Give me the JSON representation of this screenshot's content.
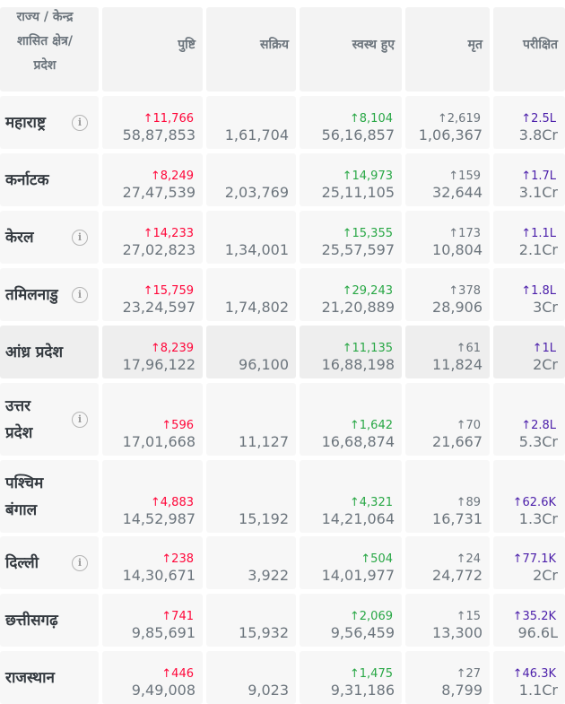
{
  "headers": {
    "state": [
      "राज्य / केन्द्र",
      "शासित क्षेत्र/",
      "प्रदेश"
    ],
    "confirmed": "पुष्टि",
    "active": "सक्रिय",
    "recovered": "स्वस्थ हुए",
    "deceased": "मृत",
    "tested": "परीक्षित"
  },
  "info_icon": "ⓘ",
  "rows": [
    {
      "state": [
        "महाराष्ट्र"
      ],
      "info": true,
      "confirmed_delta": "↑11,766",
      "confirmed": "58,87,853",
      "active": "1,61,704",
      "recovered_delta": "↑8,104",
      "recovered": "56,16,857",
      "deceased_delta": "↑2,619",
      "deceased": "1,06,367",
      "tested_delta": "↑2.5L",
      "tested": "3.8Cr"
    },
    {
      "state": [
        "कर्नाटक"
      ],
      "info": false,
      "confirmed_delta": "↑8,249",
      "confirmed": "27,47,539",
      "active": "2,03,769",
      "recovered_delta": "↑14,973",
      "recovered": "25,11,105",
      "deceased_delta": "↑159",
      "deceased": "32,644",
      "tested_delta": "↑1.7L",
      "tested": "3.1Cr"
    },
    {
      "state": [
        "केरल"
      ],
      "info": true,
      "confirmed_delta": "↑14,233",
      "confirmed": "27,02,823",
      "active": "1,34,001",
      "recovered_delta": "↑15,355",
      "recovered": "25,57,597",
      "deceased_delta": "↑173",
      "deceased": "10,804",
      "tested_delta": "↑1.1L",
      "tested": "2.1Cr"
    },
    {
      "state": [
        "तमिलनाडु"
      ],
      "info": true,
      "confirmed_delta": "↑15,759",
      "confirmed": "23,24,597",
      "active": "1,74,802",
      "recovered_delta": "↑29,243",
      "recovered": "21,20,889",
      "deceased_delta": "↑378",
      "deceased": "28,906",
      "tested_delta": "↑1.8L",
      "tested": "3Cr"
    },
    {
      "state": [
        "आंध्र प्रदेश"
      ],
      "info": false,
      "confirmed_delta": "↑8,239",
      "confirmed": "17,96,122",
      "active": "96,100",
      "recovered_delta": "↑11,135",
      "recovered": "16,88,198",
      "deceased_delta": "↑61",
      "deceased": "11,824",
      "tested_delta": "↑1L",
      "tested": "2Cr"
    },
    {
      "state": [
        "उत्तर",
        "प्रदेश"
      ],
      "info": true,
      "confirmed_delta": "↑596",
      "confirmed": "17,01,668",
      "active": "11,127",
      "recovered_delta": "↑1,642",
      "recovered": "16,68,874",
      "deceased_delta": "↑70",
      "deceased": "21,667",
      "tested_delta": "↑2.8L",
      "tested": "5.3Cr"
    },
    {
      "state": [
        "पश्चिम",
        "बंगाल"
      ],
      "info": false,
      "confirmed_delta": "↑4,883",
      "confirmed": "14,52,987",
      "active": "15,192",
      "recovered_delta": "↑4,321",
      "recovered": "14,21,064",
      "deceased_delta": "↑89",
      "deceased": "16,731",
      "tested_delta": "↑62.6K",
      "tested": "1.3Cr"
    },
    {
      "state": [
        "दिल्ली"
      ],
      "info": true,
      "confirmed_delta": "↑238",
      "confirmed": "14,30,671",
      "active": "3,922",
      "recovered_delta": "↑504",
      "recovered": "14,01,977",
      "deceased_delta": "↑24",
      "deceased": "24,772",
      "tested_delta": "↑77.1K",
      "tested": "2Cr"
    },
    {
      "state": [
        "छत्तीसगढ़"
      ],
      "info": false,
      "confirmed_delta": "↑741",
      "confirmed": "9,85,691",
      "active": "15,932",
      "recovered_delta": "↑2,069",
      "recovered": "9,56,459",
      "deceased_delta": "↑15",
      "deceased": "13,300",
      "tested_delta": "↑35.2K",
      "tested": "96.6L"
    },
    {
      "state": [
        "राजस्थान"
      ],
      "info": false,
      "confirmed_delta": "↑446",
      "confirmed": "9,49,008",
      "active": "9,023",
      "recovered_delta": "↑1,475",
      "recovered": "9,31,186",
      "deceased_delta": "↑27",
      "deceased": "8,799",
      "tested_delta": "↑46.3K",
      "tested": "1.1Cr"
    }
  ],
  "colors": {
    "confirmed": "#ff073a",
    "recovered": "#28a745",
    "deceased": "#6c757d",
    "tested": "#4b1eaa"
  }
}
